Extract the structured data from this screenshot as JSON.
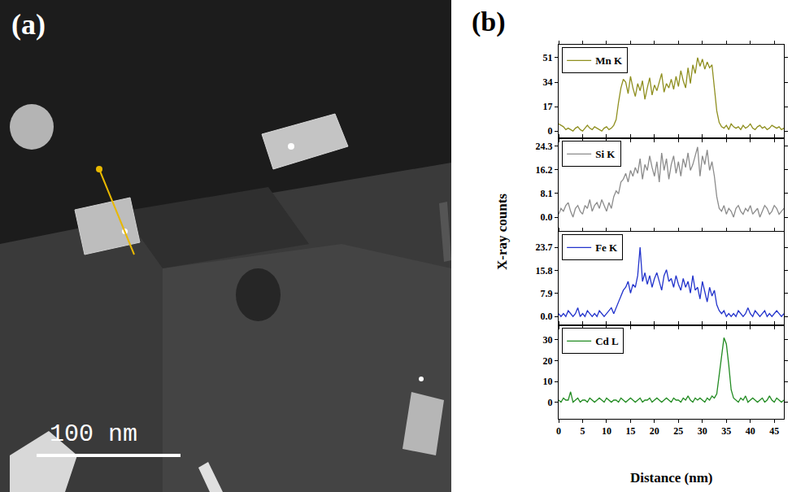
{
  "image_panel": {
    "label": "(a)",
    "scale_bar": "100 nm"
  },
  "figure": {
    "label": "(b)",
    "xlabel": "Distance (nm)",
    "ylabel": "X-ray counts"
  },
  "chart_data": [
    {
      "type": "line",
      "legend": "upper left",
      "grid": false,
      "tick_labels": "y",
      "x": [
        0,
        0.5,
        1,
        1.5,
        2,
        2.5,
        3,
        3.5,
        4,
        4.5,
        5,
        5.5,
        6,
        6.5,
        7,
        7.5,
        8,
        8.5,
        9,
        9.5,
        10,
        10.5,
        11,
        11.5,
        12,
        12.5,
        13,
        13.5,
        14,
        14.5,
        15,
        15.5,
        16,
        16.5,
        17,
        17.5,
        18,
        18.5,
        19,
        19.5,
        20,
        20.5,
        21,
        21.5,
        22,
        22.5,
        23,
        23.5,
        24,
        24.5,
        25,
        25.5,
        26,
        26.5,
        27,
        27.5,
        28,
        28.5,
        29,
        29.5,
        30,
        30.5,
        31,
        31.5,
        32,
        32.5,
        33,
        33.5,
        34,
        34.5,
        35,
        35.5,
        36,
        36.5,
        37,
        37.5,
        38,
        38.5,
        39,
        39.5,
        40,
        40.5,
        41,
        41.5,
        42,
        42.5,
        43,
        43.5,
        44,
        44.5,
        45,
        45.5,
        46,
        46.5,
        47
      ],
      "series": [
        {
          "name": "Mn K",
          "color": "#8f8f1f",
          "values": [
            5,
            4,
            3,
            1,
            2,
            1,
            0,
            2,
            3,
            1,
            0,
            2,
            4,
            2,
            1,
            3,
            2,
            1,
            0,
            2,
            3,
            1,
            2,
            4,
            8,
            20,
            30,
            36,
            34,
            26,
            38,
            30,
            24,
            33,
            28,
            35,
            22,
            30,
            37,
            25,
            32,
            28,
            34,
            40,
            27,
            33,
            30,
            36,
            29,
            38,
            31,
            42,
            35,
            30,
            44,
            33,
            46,
            40,
            51,
            45,
            50,
            43,
            48,
            44,
            46,
            30,
            14,
            6,
            3,
            2,
            4,
            1,
            5,
            3,
            2,
            3,
            1,
            4,
            2,
            3,
            5,
            2,
            1,
            3,
            4,
            2,
            3,
            1,
            2,
            4,
            3,
            2,
            3,
            1,
            2
          ]
        }
      ],
      "xlim": [
        0,
        47
      ],
      "xticks": [
        0,
        5,
        10,
        15,
        20,
        25,
        30,
        35,
        40,
        45
      ],
      "ylim": [
        -5,
        60
      ],
      "yticks": [
        0,
        17,
        34,
        51
      ]
    },
    {
      "type": "line",
      "legend": "upper left",
      "grid": false,
      "tick_labels": "y",
      "x": [
        0,
        0.5,
        1,
        1.5,
        2,
        2.5,
        3,
        3.5,
        4,
        4.5,
        5,
        5.5,
        6,
        6.5,
        7,
        7.5,
        8,
        8.5,
        9,
        9.5,
        10,
        10.5,
        11,
        11.5,
        12,
        12.5,
        13,
        13.5,
        14,
        14.5,
        15,
        15.5,
        16,
        16.5,
        17,
        17.5,
        18,
        18.5,
        19,
        19.5,
        20,
        20.5,
        21,
        21.5,
        22,
        22.5,
        23,
        23.5,
        24,
        24.5,
        25,
        25.5,
        26,
        26.5,
        27,
        27.5,
        28,
        28.5,
        29,
        29.5,
        30,
        30.5,
        31,
        31.5,
        32,
        32.5,
        33,
        33.5,
        34,
        34.5,
        35,
        35.5,
        36,
        36.5,
        37,
        37.5,
        38,
        38.5,
        39,
        39.5,
        40,
        40.5,
        41,
        41.5,
        42,
        42.5,
        43,
        43.5,
        44,
        44.5,
        45,
        45.5,
        46,
        46.5,
        47
      ],
      "series": [
        {
          "name": "Si K",
          "color": "#8c8c8c",
          "values": [
            1,
            3,
            2,
            4,
            5,
            2,
            0,
            3,
            4,
            2,
            1,
            4,
            3,
            6,
            2,
            4,
            5,
            3,
            6,
            4,
            2,
            5,
            3,
            7,
            9,
            8,
            12,
            13,
            15,
            12,
            16,
            14,
            17,
            15,
            20,
            13,
            18,
            16,
            21,
            17,
            14,
            19,
            12,
            22,
            16,
            20,
            13,
            18,
            21,
            15,
            19,
            14,
            20,
            17,
            22,
            16,
            18,
            21,
            24,
            14,
            21,
            18,
            23,
            16,
            19,
            14,
            7,
            3,
            2,
            4,
            1,
            3,
            2,
            0,
            3,
            4,
            2,
            1,
            3,
            2,
            4,
            1,
            2,
            3,
            0,
            2,
            4,
            3,
            1,
            2,
            4,
            3,
            1,
            2,
            3
          ]
        }
      ],
      "xlim": [
        0,
        47
      ],
      "xticks": [
        0,
        5,
        10,
        15,
        20,
        25,
        30,
        35,
        40,
        45
      ],
      "ylim": [
        -5,
        27
      ],
      "yticks": [
        {
          "value": 0,
          "label": "0.0"
        },
        8.1,
        16.2,
        24.3
      ]
    },
    {
      "type": "line",
      "legend": "upper left",
      "grid": false,
      "tick_labels": "y",
      "x": [
        0,
        0.5,
        1,
        1.5,
        2,
        2.5,
        3,
        3.5,
        4,
        4.5,
        5,
        5.5,
        6,
        6.5,
        7,
        7.5,
        8,
        8.5,
        9,
        9.5,
        10,
        10.5,
        11,
        11.5,
        12,
        12.5,
        13,
        13.5,
        14,
        14.5,
        15,
        15.5,
        16,
        16.5,
        17,
        17.5,
        18,
        18.5,
        19,
        19.5,
        20,
        20.5,
        21,
        21.5,
        22,
        22.5,
        23,
        23.5,
        24,
        24.5,
        25,
        25.5,
        26,
        26.5,
        27,
        27.5,
        28,
        28.5,
        29,
        29.5,
        30,
        30.5,
        31,
        31.5,
        32,
        32.5,
        33,
        33.5,
        34,
        34.5,
        35,
        35.5,
        36,
        36.5,
        37,
        37.5,
        38,
        38.5,
        39,
        39.5,
        40,
        40.5,
        41,
        41.5,
        42,
        42.5,
        43,
        43.5,
        44,
        44.5,
        45,
        45.5,
        46,
        46.5,
        47
      ],
      "series": [
        {
          "name": "Fe K",
          "color": "#2233cc",
          "values": [
            1,
            0,
            1,
            0,
            2,
            1,
            0,
            1,
            3,
            0,
            1,
            0,
            2,
            1,
            0,
            1,
            0,
            2,
            1,
            0,
            1,
            2,
            3,
            1,
            3,
            5,
            7,
            9,
            10,
            12,
            8,
            11,
            10,
            14,
            23.7,
            12,
            15,
            11,
            14,
            10,
            13,
            15,
            12,
            9,
            14,
            16,
            12,
            13,
            10,
            14,
            11,
            9,
            13,
            10,
            12,
            8,
            14,
            9,
            10,
            6,
            12,
            8,
            5,
            10,
            7,
            9,
            4,
            2,
            1,
            2,
            0,
            1,
            0,
            1,
            0,
            2,
            1,
            0,
            1,
            3,
            1,
            0,
            2,
            1,
            0,
            1,
            2,
            0,
            1,
            0,
            1,
            2,
            1,
            0,
            1
          ]
        }
      ],
      "xlim": [
        0,
        47
      ],
      "xticks": [
        0,
        5,
        10,
        15,
        20,
        25,
        30,
        35,
        40,
        45
      ],
      "ylim": [
        -3,
        29
      ],
      "yticks": [
        {
          "value": 0,
          "label": "0.0"
        },
        7.9,
        15.8,
        23.7
      ]
    },
    {
      "type": "line",
      "legend": "upper left",
      "grid": false,
      "x": [
        0,
        0.5,
        1,
        1.5,
        2,
        2.5,
        3,
        3.5,
        4,
        4.5,
        5,
        5.5,
        6,
        6.5,
        7,
        7.5,
        8,
        8.5,
        9,
        9.5,
        10,
        10.5,
        11,
        11.5,
        12,
        12.5,
        13,
        13.5,
        14,
        14.5,
        15,
        15.5,
        16,
        16.5,
        17,
        17.5,
        18,
        18.5,
        19,
        19.5,
        20,
        20.5,
        21,
        21.5,
        22,
        22.5,
        23,
        23.5,
        24,
        24.5,
        25,
        25.5,
        26,
        26.5,
        27,
        27.5,
        28,
        28.5,
        29,
        29.5,
        30,
        30.5,
        31,
        31.5,
        32,
        32.5,
        33,
        33.5,
        34,
        34.5,
        35,
        35.5,
        36,
        36.5,
        37,
        37.5,
        38,
        38.5,
        39,
        39.5,
        40,
        40.5,
        41,
        41.5,
        42,
        42.5,
        43,
        43.5,
        44,
        44.5,
        45,
        45.5,
        46,
        46.5,
        47
      ],
      "series": [
        {
          "name": "Cd L",
          "color": "#228b22",
          "values": [
            1,
            0,
            2,
            1,
            1,
            5,
            0,
            1,
            2,
            0,
            1,
            1,
            0,
            2,
            1,
            0,
            1,
            2,
            1,
            0,
            2,
            1,
            0,
            1,
            1,
            0,
            2,
            1,
            0,
            1,
            2,
            1,
            0,
            1,
            2,
            0,
            1,
            1,
            2,
            0,
            1,
            2,
            1,
            0,
            1,
            2,
            1,
            0,
            2,
            1,
            1,
            0,
            2,
            1,
            3,
            1,
            0,
            2,
            1,
            2,
            1,
            0,
            2,
            1,
            3,
            2,
            4,
            12,
            22,
            31,
            28,
            18,
            6,
            2,
            1,
            0,
            2,
            1,
            3,
            0,
            1,
            2,
            1,
            0,
            1,
            2,
            0,
            1,
            3,
            1,
            0,
            2,
            1,
            0,
            1
          ]
        }
      ],
      "xlim": [
        0,
        47
      ],
      "xticks": [
        0,
        5,
        10,
        15,
        20,
        25,
        30,
        35,
        40,
        45
      ],
      "ylim": [
        -8,
        37
      ],
      "yticks": [
        0,
        10,
        20,
        30
      ]
    }
  ]
}
